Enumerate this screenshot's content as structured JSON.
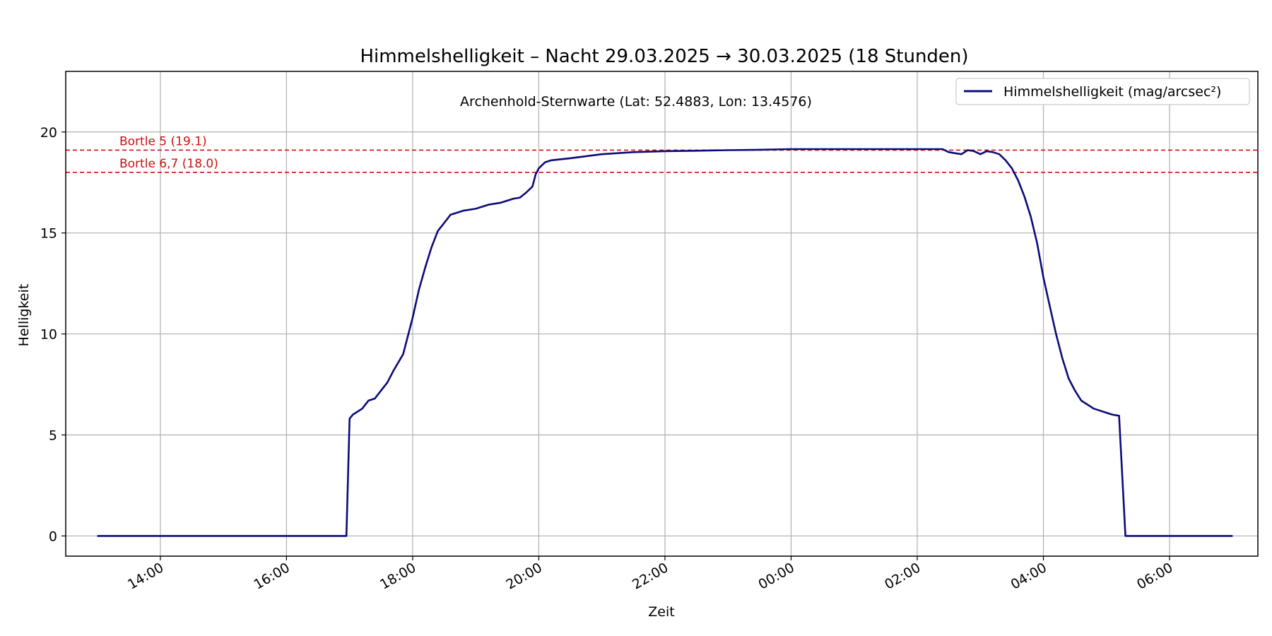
{
  "chart_data": {
    "type": "line",
    "title": "Himmelshelligkeit – Nacht 29.03.2025 → 30.03.2025 (18 Stunden)",
    "annotation": "Archenhold-Sternwarte (Lat: 52.4883, Lon: 13.4576)",
    "xlabel": "Zeit",
    "ylabel": "Helligkeit",
    "x_unit": "hours since 29.03.2025 00:00",
    "xlim": [
      12.5,
      31.4
    ],
    "ylim": [
      -1,
      23
    ],
    "x_ticks": [
      {
        "value": 14,
        "label": "14:00"
      },
      {
        "value": 16,
        "label": "16:00"
      },
      {
        "value": 18,
        "label": "18:00"
      },
      {
        "value": 20,
        "label": "20:00"
      },
      {
        "value": 22,
        "label": "22:00"
      },
      {
        "value": 24,
        "label": "00:00"
      },
      {
        "value": 26,
        "label": "02:00"
      },
      {
        "value": 28,
        "label": "04:00"
      },
      {
        "value": 30,
        "label": "06:00"
      }
    ],
    "y_ticks": [
      {
        "value": 0,
        "label": "0"
      },
      {
        "value": 5,
        "label": "5"
      },
      {
        "value": 10,
        "label": "10"
      },
      {
        "value": 15,
        "label": "15"
      },
      {
        "value": 20,
        "label": "20"
      }
    ],
    "grid": true,
    "legend_position": "top-right",
    "series": [
      {
        "name": "Himmelshelligkeit (mag/arcsec²)",
        "color": "#0b0b7a",
        "x": [
          13.0,
          14.0,
          15.0,
          16.0,
          16.95,
          17.0,
          17.05,
          17.2,
          17.3,
          17.4,
          17.5,
          17.6,
          17.7,
          17.85,
          18.0,
          18.1,
          18.2,
          18.3,
          18.4,
          18.5,
          18.6,
          18.8,
          19.0,
          19.2,
          19.4,
          19.6,
          19.7,
          19.8,
          19.9,
          19.95,
          20.0,
          20.1,
          20.2,
          20.5,
          21.0,
          21.5,
          22.0,
          22.5,
          23.0,
          23.5,
          24.0,
          25.0,
          26.0,
          26.4,
          26.5,
          26.6,
          26.7,
          26.8,
          26.9,
          27.0,
          27.1,
          27.2,
          27.3,
          27.4,
          27.5,
          27.6,
          27.7,
          27.8,
          27.9,
          28.0,
          28.1,
          28.2,
          28.3,
          28.4,
          28.5,
          28.6,
          28.7,
          28.8,
          28.9,
          29.0,
          29.1,
          29.2,
          29.3,
          29.4,
          29.5,
          29.55,
          29.6,
          29.7,
          30.0,
          31.0
        ],
        "y": [
          0,
          0,
          0,
          0,
          0,
          5.8,
          6.0,
          6.3,
          6.7,
          6.8,
          7.2,
          7.6,
          8.2,
          9.0,
          10.8,
          12.2,
          13.3,
          14.3,
          15.1,
          15.5,
          15.9,
          16.1,
          16.2,
          16.4,
          16.5,
          16.7,
          16.75,
          17.0,
          17.3,
          17.9,
          18.2,
          18.5,
          18.6,
          18.7,
          18.9,
          19.0,
          19.05,
          19.07,
          19.1,
          19.12,
          19.15,
          19.15,
          19.15,
          19.15,
          19.0,
          18.95,
          18.9,
          19.1,
          19.05,
          18.9,
          19.05,
          19.0,
          18.9,
          18.6,
          18.2,
          17.6,
          16.8,
          15.8,
          14.5,
          12.8,
          11.4,
          10.0,
          8.8,
          7.8,
          7.2,
          6.7,
          6.5,
          6.3,
          6.2,
          6.1,
          6.0,
          5.95,
          0,
          0,
          0,
          0,
          0,
          0,
          0,
          0
        ]
      },
      {
        "name": "Bortle 5 (19.1)",
        "type": "hline",
        "value": 19.1,
        "color": "#cc1111"
      },
      {
        "name": "Bortle 6,7 (18.0)",
        "type": "hline",
        "value": 18.0,
        "color": "#cc1111"
      }
    ]
  }
}
